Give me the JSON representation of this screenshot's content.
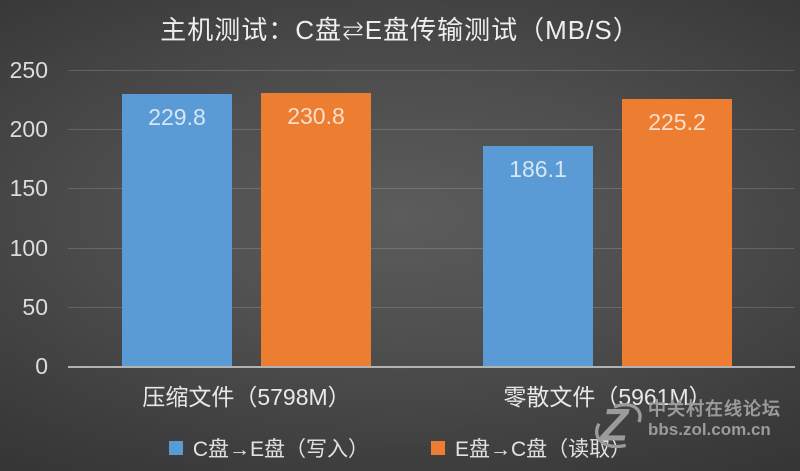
{
  "title": "主机测试：C盘⇆E盘传输测试（MB/S）",
  "chart_data": {
    "type": "bar",
    "title": "主机测试：C盘⇆E盘传输测试（MB/S）",
    "categories": [
      "压缩文件（5798M）",
      "零散文件（5961M）"
    ],
    "series": [
      {
        "name": "C盘→E盘（写入）",
        "color": "#5B9BD5",
        "values": [
          229.8,
          186.1
        ]
      },
      {
        "name": "E盘→C盘（读取）",
        "color": "#ED7D31",
        "values": [
          230.8,
          225.2
        ]
      }
    ],
    "ylim": [
      0,
      250
    ],
    "yticks": [
      0,
      50,
      100,
      150,
      200,
      250
    ],
    "grid": true,
    "legend_position": "bottom",
    "value_labels": true
  },
  "colors": {
    "blue_series": "#5B9BD5",
    "orange_series": "#ED7D31",
    "background_center": "#5c5c5c",
    "background_edge": "#262626",
    "axis_line": "#b2b2b2",
    "text": "#eeeeee",
    "watermark": "#9b9b9b"
  },
  "watermark": {
    "logo": "zol-z-logo",
    "site_name": "中关村在线论坛",
    "site_url": "bbs.zol.com.cn"
  }
}
